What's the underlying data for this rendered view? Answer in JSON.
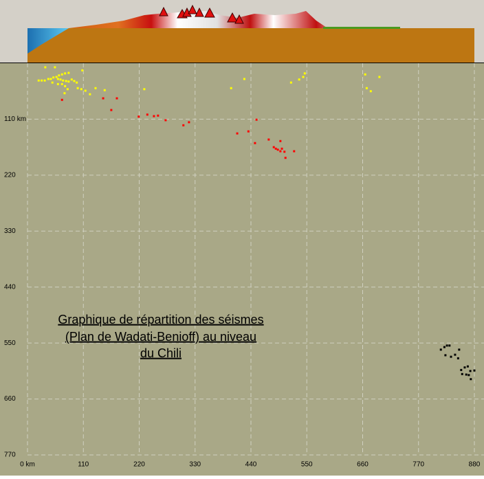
{
  "chart_data": {
    "type": "scatter",
    "annotation": [
      "Graphique de répartition des séismes",
      "(Plan de Wadati-Benioff) au niveau",
      "du Chili"
    ],
    "xlim": [
      0,
      880
    ],
    "ylim": [
      0,
      770
    ],
    "y_inverted": true,
    "grid": true,
    "xticks": [
      {
        "value": 0,
        "label": "0 km"
      },
      110,
      220,
      330,
      440,
      550,
      660,
      770,
      880
    ],
    "yticks": [
      {
        "value": 110,
        "label": "110 km"
      },
      220,
      330,
      440,
      550,
      660,
      770
    ],
    "series": [
      {
        "color": "#ffff00",
        "x": [
          35,
          54,
          22,
          28,
          34,
          41,
          46,
          51,
          57,
          62,
          68,
          74,
          81,
          60,
          65,
          70,
          76,
          81,
          87,
          92,
          97,
          68,
          74,
          79,
          73,
          108,
          99,
          106,
          114,
          123,
          134,
          152,
          230,
          401,
          427,
          519,
          535,
          543,
          546,
          665,
          693,
          668,
          676,
          49,
          60
        ],
        "values": [
          8,
          8,
          34,
          34,
          34,
          31,
          31,
          28,
          27,
          24,
          22,
          20,
          19,
          31,
          32,
          34,
          35,
          36,
          32,
          35,
          38,
          41,
          45,
          51,
          59,
          14,
          49,
          51,
          54,
          61,
          49,
          53,
          51,
          49,
          31,
          38,
          32,
          27,
          20,
          22,
          27,
          49,
          55,
          38,
          41
        ]
      },
      {
        "color": "#ff0000",
        "x": [
          68,
          149,
          165,
          176,
          219,
          236,
          249,
          257,
          272,
          307,
          318,
          413,
          435,
          451,
          448,
          475,
          485,
          489,
          493,
          498,
          501,
          506,
          498,
          508,
          525
        ],
        "values": [
          72,
          69,
          92,
          69,
          105,
          101,
          104,
          103,
          112,
          122,
          116,
          138,
          134,
          111,
          157,
          150,
          165,
          168,
          170,
          173,
          168,
          174,
          153,
          186,
          173
        ]
      },
      {
        "color": "#000000",
        "x": [
          814,
          821,
          826,
          831,
          823,
          834,
          842,
          850,
          848,
          854,
          861,
          867,
          872,
          856,
          869,
          880,
          873,
          864
        ],
        "values": [
          563,
          558,
          555,
          555,
          574,
          577,
          573,
          563,
          580,
          603,
          598,
          596,
          605,
          611,
          613,
          604,
          621,
          612
        ]
      }
    ]
  }
}
